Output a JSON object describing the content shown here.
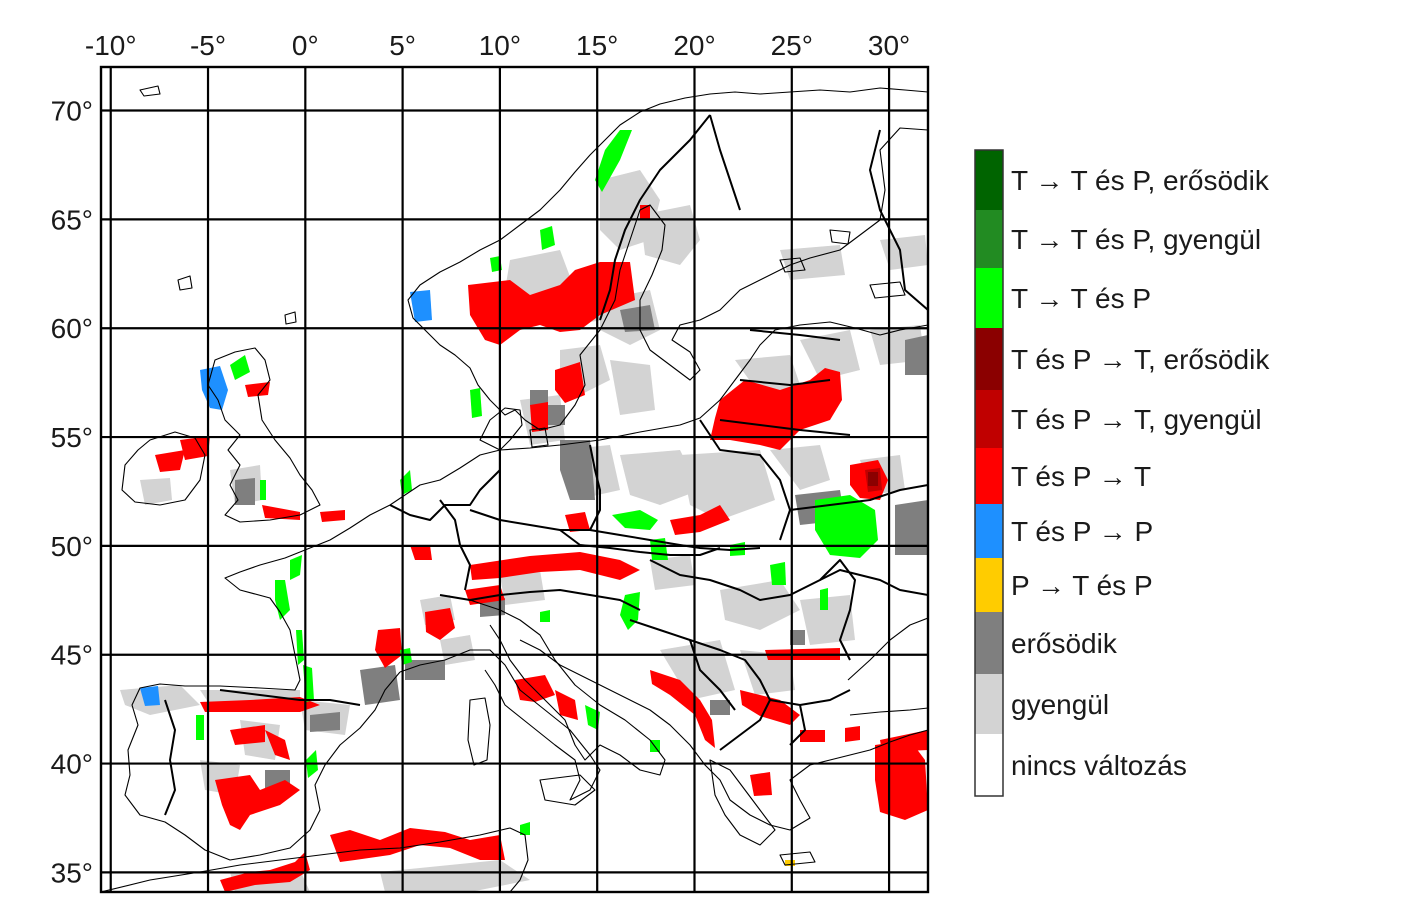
{
  "map": {
    "lon_ticks": [
      "-10°",
      "-5°",
      "0°",
      "5°",
      "10°",
      "15°",
      "20°",
      "25°",
      "30°"
    ],
    "lat_ticks": [
      "70°",
      "65°",
      "60°",
      "55°",
      "50°",
      "45°",
      "40°",
      "35°"
    ],
    "lon_values": [
      -10,
      -5,
      0,
      5,
      10,
      15,
      20,
      25,
      30
    ],
    "lat_values": [
      70,
      65,
      60,
      55,
      50,
      45,
      40,
      35
    ],
    "extent": {
      "lon_min": -10.5,
      "lon_max": 32,
      "lat_min": 34.1,
      "lat_max": 72
    },
    "region": "Europe"
  },
  "legend": {
    "items": [
      {
        "label": "T → T és P, erősödik",
        "color": "#006400"
      },
      {
        "label": "T → T és P, gyengül",
        "color": "#228b22"
      },
      {
        "label": "T → T és P",
        "color": "#00ff00"
      },
      {
        "label": "T és P → T, erősödik",
        "color": "#8b0000"
      },
      {
        "label": "T és P → T, gyengül",
        "color": "#c00000"
      },
      {
        "label": "T és P → T",
        "color": "#ff0000"
      },
      {
        "label": "T és P → P",
        "color": "#1e90ff"
      },
      {
        "label": "P → T és P",
        "color": "#ffcc00"
      },
      {
        "label": "erősödik",
        "color": "#7f7f7f"
      },
      {
        "label": "gyengül",
        "color": "#d3d3d3"
      },
      {
        "label": "nincs változás",
        "color": "#ffffff"
      }
    ]
  }
}
